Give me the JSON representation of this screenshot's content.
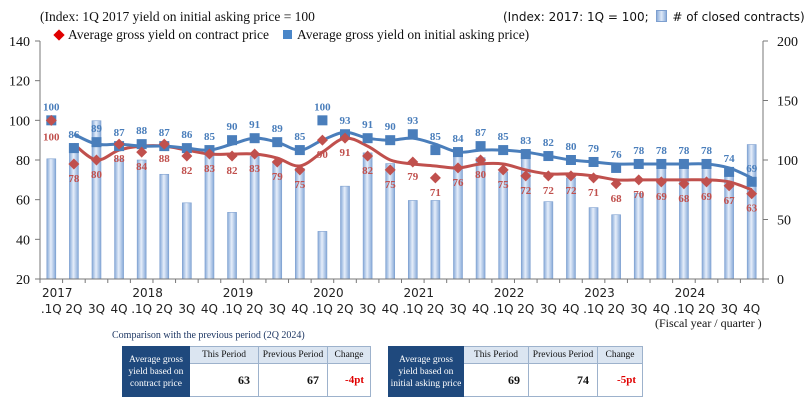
{
  "chart_data": {
    "type": "bar+line",
    "title_left": "(Index: 1Q 2017 yield on initial asking price = 100",
    "title_right": "(Index: 2017: 1Q = 100;",
    "legend": {
      "contract": "Average gross yield on contract price",
      "asking": "Average gross yield on initial asking price)",
      "bars": "# of closed contracts)"
    },
    "xlabel": "(Fiscal year / quarter )",
    "years": [
      "2017",
      "2018",
      "2019",
      "2020",
      "2021",
      "2022",
      "2023",
      "2024"
    ],
    "categories": [
      ".1Q",
      "2Q",
      "3Q",
      "4Q",
      ".1Q",
      "2Q",
      "3Q",
      "4Q",
      ".1Q",
      "2Q",
      "3Q",
      "4Q",
      ".1Q",
      "2Q",
      "3Q",
      "4Q",
      ".1Q",
      "2Q",
      "3Q",
      "4Q",
      ".1Q",
      "2Q",
      "3Q",
      "4Q",
      ".1Q",
      "2Q",
      "3Q",
      "4Q",
      ".1Q",
      "2Q",
      "3Q",
      "4Q"
    ],
    "left_axis": {
      "ylim": [
        20,
        140
      ],
      "ticks": [
        "20",
        "40",
        "60",
        "80",
        "100",
        "120",
        "140"
      ]
    },
    "right_axis": {
      "ylim": [
        0,
        200
      ],
      "ticks": [
        "0",
        "50",
        "100",
        "150",
        "200"
      ]
    },
    "series": [
      {
        "name": "Average gross yield on initial asking price",
        "axis": "left",
        "color": "#4a7ebb",
        "marker": "square",
        "values": [
          100,
          86,
          89,
          87,
          88,
          87,
          86,
          85,
          90,
          91,
          89,
          85,
          100,
          93,
          91,
          90,
          93,
          85,
          84,
          87,
          85,
          83,
          82,
          80,
          79,
          76,
          78,
          78,
          78,
          78,
          74,
          69
        ],
        "smoothed_line": [
          100,
          93,
          88,
          88,
          87,
          87,
          86,
          85,
          88,
          91,
          89,
          85,
          90,
          94,
          91,
          90,
          91,
          88,
          84,
          85,
          85,
          84,
          82,
          80,
          79,
          78,
          78,
          78,
          78,
          78,
          76,
          71
        ]
      },
      {
        "name": "Average gross yield on contract price",
        "axis": "left",
        "color": "#c0504d",
        "marker": "diamond",
        "values": [
          100,
          78,
          80,
          88,
          84,
          88,
          82,
          83,
          82,
          83,
          79,
          75,
          90,
          91,
          82,
          75,
          79,
          71,
          76,
          80,
          75,
          72,
          72,
          72,
          71,
          68,
          70,
          69,
          68,
          69,
          67,
          63
        ],
        "smoothed_line": [
          100,
          88,
          80,
          85,
          87,
          87,
          85,
          83,
          83,
          83,
          81,
          77,
          84,
          91,
          87,
          80,
          78,
          77,
          76,
          78,
          78,
          75,
          73,
          73,
          72,
          70,
          70,
          70,
          70,
          70,
          69,
          65
        ]
      },
      {
        "name": "# of closed contracts",
        "axis": "right",
        "color": "#a9c4e8",
        "type": "bar",
        "values": [
          101,
          114,
          133,
          101,
          100,
          88,
          64,
          104,
          56,
          103,
          98,
          93,
          40,
          78,
          106,
          97,
          66,
          66,
          104,
          102,
          90,
          101,
          65,
          85,
          60,
          54,
          72,
          97,
          97,
          100,
          92,
          113
        ]
      }
    ]
  },
  "comparison": {
    "title": "Comparison with the previous period (2Q 2024)",
    "columns": [
      "This Period",
      "Previous Period",
      "Change"
    ],
    "tables": [
      {
        "label": "Average gross yield based on contract price",
        "this": "63",
        "previous": "67",
        "change": "-4pt"
      },
      {
        "label": "Average gross yield based on initial asking price",
        "this": "69",
        "previous": "74",
        "change": "-5pt"
      }
    ]
  }
}
